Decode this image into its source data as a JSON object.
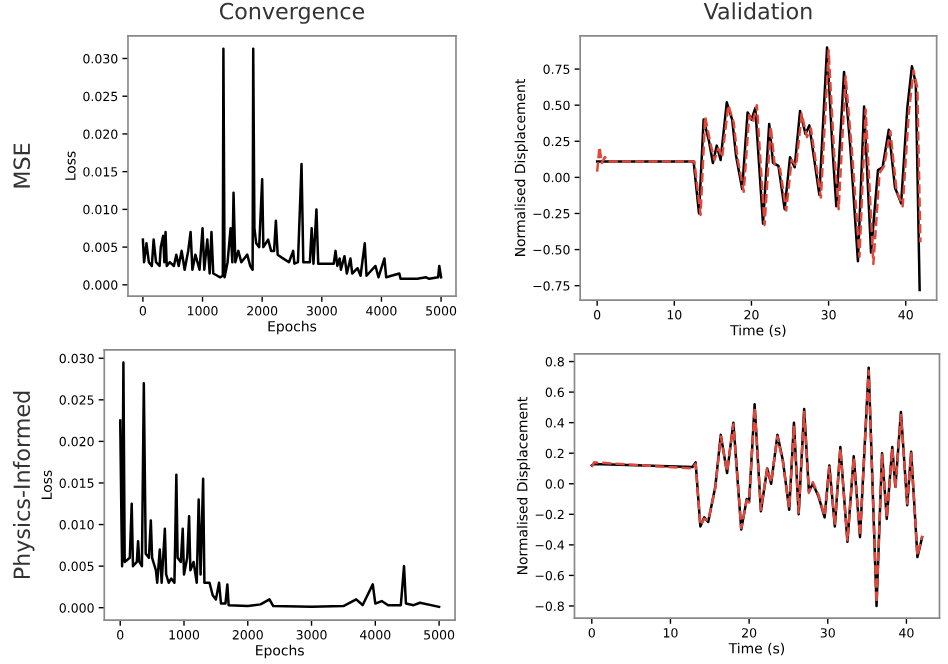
{
  "chart_data": [
    {
      "type": "line",
      "title": "Convergence",
      "xlabel": "Epochs",
      "ylabel": "Loss",
      "annotations": [
        "MSE"
      ],
      "xlim": [
        -250,
        5250
      ],
      "ylim": [
        -0.0015,
        0.033
      ],
      "xticks": [
        0,
        1000,
        2000,
        3000,
        4000,
        5000
      ],
      "yticks": [
        {
          "value": 0,
          "label": "0.000"
        },
        {
          "value": 0.005,
          "label": "0.005"
        },
        {
          "value": 0.01,
          "label": "0.010"
        },
        {
          "value": 0.015,
          "label": "0.015"
        },
        {
          "value": 0.02,
          "label": "0.020"
        },
        {
          "value": 0.025,
          "label": "0.025"
        },
        {
          "value": 0.03,
          "label": "0.030"
        }
      ],
      "series": [
        {
          "color": "#000000",
          "line_style": "solid",
          "x": [
            0,
            20,
            60,
            100,
            150,
            180,
            220,
            280,
            300,
            340,
            360,
            380,
            400,
            450,
            520,
            560,
            600,
            650,
            700,
            760,
            800,
            830,
            880,
            950,
            1000,
            1030,
            1080,
            1120,
            1150,
            1180,
            1250,
            1300,
            1340,
            1350,
            1370,
            1420,
            1470,
            1500,
            1520,
            1550,
            1600,
            1650,
            1700,
            1750,
            1800,
            1840,
            1850,
            1870,
            1900,
            1950,
            2000,
            2020,
            2100,
            2150,
            2200,
            2230,
            2260,
            2350,
            2450,
            2520,
            2540,
            2600,
            2660,
            2690,
            2800,
            2830,
            2860,
            2910,
            2940,
            3000,
            3200,
            3230,
            3260,
            3300,
            3320,
            3380,
            3420,
            3480,
            3510,
            3600,
            3650,
            3720,
            3750,
            3900,
            3950,
            4050,
            4080,
            4300,
            4320,
            4600,
            4750,
            4800,
            4950,
            4970,
            5000
          ],
          "values": [
            0.006,
            0.003,
            0.0055,
            0.003,
            0.0025,
            0.006,
            0.003,
            0.0025,
            0.005,
            0.0065,
            0.003,
            0.007,
            0.0025,
            0.003,
            0.0025,
            0.004,
            0.0025,
            0.0045,
            0.002,
            0.0045,
            0.007,
            0.002,
            0.004,
            0.002,
            0.0075,
            0.002,
            0.006,
            0.0015,
            0.007,
            0.0015,
            0.0012,
            0.001,
            0.0012,
            0.0313,
            0.001,
            0.003,
            0.0075,
            0.003,
            0.0122,
            0.003,
            0.0045,
            0.003,
            0.0035,
            0.004,
            0.0025,
            0.002,
            0.0313,
            0.0075,
            0.0055,
            0.005,
            0.014,
            0.005,
            0.006,
            0.0045,
            0.0045,
            0.0085,
            0.004,
            0.0035,
            0.003,
            0.0045,
            0.0028,
            0.003,
            0.016,
            0.003,
            0.003,
            0.0075,
            0.0028,
            0.01,
            0.0028,
            0.0028,
            0.0028,
            0.0045,
            0.0025,
            0.0035,
            0.002,
            0.0038,
            0.0015,
            0.0035,
            0.0015,
            0.0022,
            0.0012,
            0.0055,
            0.0012,
            0.0025,
            0.001,
            0.0035,
            0.001,
            0.0015,
            0.0008,
            0.0008,
            0.001,
            0.0008,
            0.001,
            0.0025,
            0.001
          ]
        }
      ]
    },
    {
      "type": "line",
      "title": "Validation",
      "xlabel": "Time (s)",
      "ylabel": "Normalised Displacement",
      "xlim": [
        -2.2,
        44
      ],
      "ylim": [
        -0.85,
        0.98
      ],
      "xticks": [
        0,
        10,
        20,
        30,
        40
      ],
      "yticks": [
        {
          "value": -0.75,
          "label": "−0.75"
        },
        {
          "value": -0.5,
          "label": "−0.50"
        },
        {
          "value": -0.25,
          "label": "−0.25"
        },
        {
          "value": 0,
          "label": "0.00"
        },
        {
          "value": 0.25,
          "label": "0.25"
        },
        {
          "value": 0.5,
          "label": "0.50"
        },
        {
          "value": 0.75,
          "label": "0.75"
        }
      ],
      "series": [
        {
          "color": "#000000",
          "line_style": "solid",
          "x": [
            0,
            12.5,
            13.2,
            13.8,
            14.5,
            15,
            15.5,
            16,
            16.8,
            17.5,
            18,
            18.8,
            19.5,
            20,
            20.5,
            21.5,
            22.3,
            22.8,
            23.5,
            24.3,
            25,
            25.6,
            26.3,
            27,
            27.5,
            28.8,
            29.8,
            30.5,
            31,
            32,
            32.8,
            33.8,
            34.6,
            35.5,
            36.4,
            37,
            37.8,
            38.6,
            39.4,
            40.2,
            40.8,
            41.3,
            41.8
          ],
          "values": [
            0.11,
            0.11,
            -0.25,
            0.4,
            0.25,
            0.1,
            0.22,
            0.12,
            0.52,
            0.4,
            0.15,
            -0.08,
            0.45,
            0.4,
            0.48,
            -0.32,
            0.37,
            0.1,
            0.08,
            -0.22,
            0.14,
            0.07,
            0.46,
            0.3,
            0.36,
            -0.12,
            0.9,
            0.2,
            -0.2,
            0.73,
            0.22,
            -0.58,
            0.49,
            -0.52,
            0.05,
            0.07,
            0.33,
            -0.07,
            -0.18,
            0.48,
            0.77,
            0.65,
            -0.78
          ]
        },
        {
          "color": "#e0483c",
          "line_style": "dashed",
          "x": [
            0,
            0.3,
            0.6,
            1,
            1.5,
            12.6,
            13.4,
            14,
            14.7,
            15.2,
            15.7,
            16.2,
            17,
            17.7,
            18.2,
            19,
            19.7,
            20.2,
            20.7,
            21.7,
            22.5,
            23,
            23.7,
            24.5,
            25.2,
            25.8,
            26.5,
            27.2,
            27.7,
            29,
            30,
            30.7,
            31.3,
            32.2,
            33,
            34,
            34.8,
            35.8,
            36.6,
            37.2,
            38,
            38.8,
            39.6,
            40.4,
            41,
            41.5,
            41.9
          ],
          "values": [
            0.04,
            0.21,
            0.1,
            0.14,
            0.11,
            0.11,
            -0.26,
            0.42,
            0.23,
            0.12,
            0.2,
            0.14,
            0.5,
            0.38,
            0.13,
            -0.1,
            0.43,
            0.38,
            0.5,
            -0.33,
            0.35,
            0.09,
            0.06,
            -0.23,
            0.12,
            0.08,
            0.44,
            0.28,
            0.34,
            -0.14,
            0.88,
            0.18,
            -0.22,
            0.7,
            0.2,
            -0.55,
            0.47,
            -0.6,
            0.03,
            0.08,
            0.32,
            -0.09,
            -0.2,
            0.45,
            0.74,
            0.62,
            -0.45
          ]
        }
      ]
    },
    {
      "type": "line",
      "xlabel": "Epochs",
      "ylabel": "Loss",
      "annotations": [
        "Physics-Informed"
      ],
      "xlim": [
        -250,
        5250
      ],
      "ylim": [
        -0.0015,
        0.031
      ],
      "xticks": [
        0,
        1000,
        2000,
        3000,
        4000,
        5000
      ],
      "yticks": [
        {
          "value": 0,
          "label": "0.000"
        },
        {
          "value": 0.005,
          "label": "0.005"
        },
        {
          "value": 0.01,
          "label": "0.010"
        },
        {
          "value": 0.015,
          "label": "0.015"
        },
        {
          "value": 0.02,
          "label": "0.020"
        },
        {
          "value": 0.025,
          "label": "0.025"
        },
        {
          "value": 0.03,
          "label": "0.030"
        }
      ],
      "series": [
        {
          "color": "#000000",
          "line_style": "solid",
          "x": [
            0,
            20,
            30,
            50,
            70,
            150,
            180,
            200,
            260,
            280,
            300,
            340,
            370,
            400,
            450,
            480,
            500,
            560,
            580,
            620,
            650,
            700,
            720,
            760,
            800,
            850,
            880,
            900,
            950,
            980,
            1000,
            1050,
            1080,
            1100,
            1150,
            1200,
            1230,
            1260,
            1300,
            1320,
            1400,
            1450,
            1500,
            1550,
            1580,
            1650,
            1680,
            1700,
            2000,
            2200,
            2340,
            2400,
            3000,
            3500,
            3700,
            3760,
            3800,
            3960,
            4000,
            4100,
            4200,
            4400,
            4450,
            4480,
            4600,
            4700,
            5000
          ],
          "values": [
            0.0225,
            0.01,
            0.005,
            0.0295,
            0.0055,
            0.006,
            0.0125,
            0.005,
            0.0055,
            0.008,
            0.0055,
            0.005,
            0.027,
            0.0065,
            0.006,
            0.0105,
            0.006,
            0.0045,
            0.003,
            0.007,
            0.003,
            0.0095,
            0.004,
            0.003,
            0.0035,
            0.003,
            0.016,
            0.006,
            0.0055,
            0.0095,
            0.004,
            0.006,
            0.011,
            0.0045,
            0.0055,
            0.003,
            0.013,
            0.004,
            0.0155,
            0.003,
            0.003,
            0.0015,
            0.001,
            0.003,
            0.0005,
            0.0005,
            0.0028,
            0.0003,
            0.0002,
            0.0004,
            0.001,
            0.0002,
            0.0001,
            0.0002,
            0.001,
            0.0006,
            0.0003,
            0.0028,
            0.0005,
            0.0008,
            0.0003,
            0.0003,
            0.005,
            0.0005,
            0.0003,
            0.0006,
            0.0001
          ]
        }
      ]
    },
    {
      "type": "line",
      "xlabel": "Time (s)",
      "ylabel": "Normalised Displacement",
      "xlim": [
        -2.2,
        44.2
      ],
      "ylim": [
        -0.88,
        0.85
      ],
      "xticks": [
        0,
        10,
        20,
        30,
        40
      ],
      "yticks": [
        {
          "value": -0.8,
          "label": "−0.8"
        },
        {
          "value": -0.6,
          "label": "−0.6"
        },
        {
          "value": -0.4,
          "label": "−0.4"
        },
        {
          "value": -0.2,
          "label": "−0.2"
        },
        {
          "value": 0,
          "label": "0.0"
        },
        {
          "value": 0.2,
          "label": "0.2"
        },
        {
          "value": 0.4,
          "label": "0.4"
        },
        {
          "value": 0.6,
          "label": "0.6"
        },
        {
          "value": 0.8,
          "label": "0.8"
        }
      ],
      "series": [
        {
          "color": "#000000",
          "line_style": "solid",
          "x": [
            0,
            0.3,
            12.8,
            13.2,
            13.8,
            14.3,
            14.8,
            15.7,
            16.4,
            17.2,
            18,
            19,
            19.7,
            20,
            20.7,
            21.5,
            22.3,
            22.8,
            23.6,
            24.3,
            25.1,
            25.7,
            26.3,
            27,
            27.6,
            28.1,
            28.8,
            29.6,
            30.2,
            30.9,
            31.6,
            32.5,
            33.3,
            34.1,
            35.2,
            36.2,
            36.9,
            37.5,
            38.2,
            38.6,
            39.3,
            40.1,
            40.6,
            41.4,
            42
          ],
          "values": [
            0.12,
            0.13,
            0.11,
            0.14,
            -0.28,
            -0.22,
            -0.25,
            -0.02,
            0.32,
            0.07,
            0.4,
            -0.3,
            -0.1,
            -0.12,
            0.52,
            -0.18,
            0.1,
            0,
            0.32,
            0.15,
            -0.17,
            0.4,
            -0.2,
            0.49,
            -0.05,
            0,
            -0.08,
            -0.22,
            0.12,
            -0.28,
            0.24,
            -0.38,
            0.18,
            -0.35,
            0.76,
            -0.8,
            0.2,
            -0.23,
            0.24,
            -0.02,
            0.47,
            -0.14,
            0.21,
            -0.48,
            -0.35
          ]
        },
        {
          "color": "#e0483c",
          "line_style": "dashed",
          "x": [
            0,
            0.3,
            12.8,
            13.2,
            13.8,
            14.3,
            14.8,
            15.7,
            16.4,
            17.2,
            18,
            19,
            19.7,
            20,
            20.7,
            21.5,
            22.3,
            22.8,
            23.6,
            24.3,
            25.1,
            25.7,
            26.3,
            27,
            27.6,
            28.1,
            28.8,
            29.6,
            30.2,
            30.9,
            31.6,
            32.5,
            33.3,
            34.1,
            35.2,
            36.2,
            36.9,
            37.5,
            38.2,
            38.6,
            39.3,
            40.1,
            40.6,
            41.4,
            42
          ],
          "values": [
            0.11,
            0.14,
            0.1,
            0.13,
            -0.27,
            -0.23,
            -0.24,
            -0.03,
            0.31,
            0.08,
            0.39,
            -0.29,
            -0.11,
            -0.12,
            0.5,
            -0.17,
            0.1,
            0.01,
            0.31,
            0.14,
            -0.16,
            0.38,
            -0.19,
            0.47,
            -0.06,
            0.01,
            -0.07,
            -0.21,
            0.11,
            -0.27,
            0.23,
            -0.37,
            0.17,
            -0.34,
            0.74,
            -0.78,
            0.19,
            -0.22,
            0.23,
            -0.03,
            0.45,
            -0.13,
            0.2,
            -0.47,
            -0.34
          ]
        }
      ]
    }
  ]
}
